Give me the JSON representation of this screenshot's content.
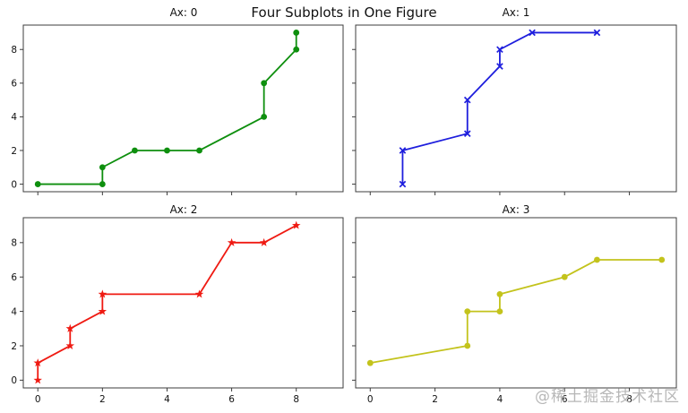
{
  "figure": {
    "title": "Four Subplots in One Figure",
    "watermark": "@稀土掘金技术社区",
    "background": "#ffffff",
    "axis_color": "#3c3c3c",
    "text_color": "#111111"
  },
  "chart_data": [
    {
      "type": "line",
      "title": "Ax: 0",
      "color": "#0e8f0e",
      "marker": "circle",
      "x": [
        0,
        2,
        2,
        3,
        4,
        5,
        7,
        7,
        8,
        8
      ],
      "y": [
        0,
        0,
        1,
        2,
        2,
        2,
        4,
        6,
        8,
        9
      ],
      "xlim": [
        -0.45,
        9.45
      ],
      "ylim": [
        -0.45,
        9.45
      ],
      "xticks": [
        0,
        2,
        4,
        6,
        8
      ],
      "yticks": [
        0,
        2,
        4,
        6,
        8
      ],
      "show_xticklabels": false,
      "show_yticklabels": true,
      "xlabel": "",
      "ylabel": "",
      "grid": false,
      "legend": null
    },
    {
      "type": "line",
      "title": "Ax: 1",
      "color": "#1e1edd",
      "marker": "x",
      "x": [
        1,
        1,
        3,
        3,
        4,
        4,
        5,
        7
      ],
      "y": [
        0,
        2,
        3,
        5,
        7,
        8,
        9,
        9
      ],
      "xlim": [
        -0.45,
        9.45
      ],
      "ylim": [
        -0.45,
        9.45
      ],
      "xticks": [
        0,
        2,
        4,
        6,
        8
      ],
      "yticks": [
        0,
        2,
        4,
        6,
        8
      ],
      "show_xticklabels": false,
      "show_yticklabels": false,
      "xlabel": "",
      "ylabel": "",
      "grid": false,
      "legend": null
    },
    {
      "type": "line",
      "title": "Ax: 2",
      "color": "#ef1a12",
      "marker": "star",
      "x": [
        0,
        0,
        1,
        1,
        2,
        2,
        5,
        6,
        7,
        8
      ],
      "y": [
        0,
        1,
        2,
        3,
        4,
        5,
        5,
        8,
        8,
        9
      ],
      "xlim": [
        -0.45,
        9.45
      ],
      "ylim": [
        -0.45,
        9.45
      ],
      "xticks": [
        0,
        2,
        4,
        6,
        8
      ],
      "yticks": [
        0,
        2,
        4,
        6,
        8
      ],
      "show_xticklabels": true,
      "show_yticklabels": true,
      "xlabel": "",
      "ylabel": "",
      "grid": false,
      "legend": null
    },
    {
      "type": "line",
      "title": "Ax: 3",
      "color": "#c3c31c",
      "marker": "circle",
      "x": [
        0,
        3,
        3,
        4,
        4,
        6,
        7,
        9
      ],
      "y": [
        1,
        2,
        4,
        4,
        5,
        6,
        7,
        7
      ],
      "xlim": [
        -0.45,
        9.45
      ],
      "ylim": [
        -0.45,
        9.45
      ],
      "xticks": [
        0,
        2,
        4,
        6,
        8
      ],
      "yticks": [
        0,
        2,
        4,
        6,
        8
      ],
      "show_xticklabels": true,
      "show_yticklabels": false,
      "xlabel": "",
      "ylabel": "",
      "grid": false,
      "legend": null
    }
  ]
}
